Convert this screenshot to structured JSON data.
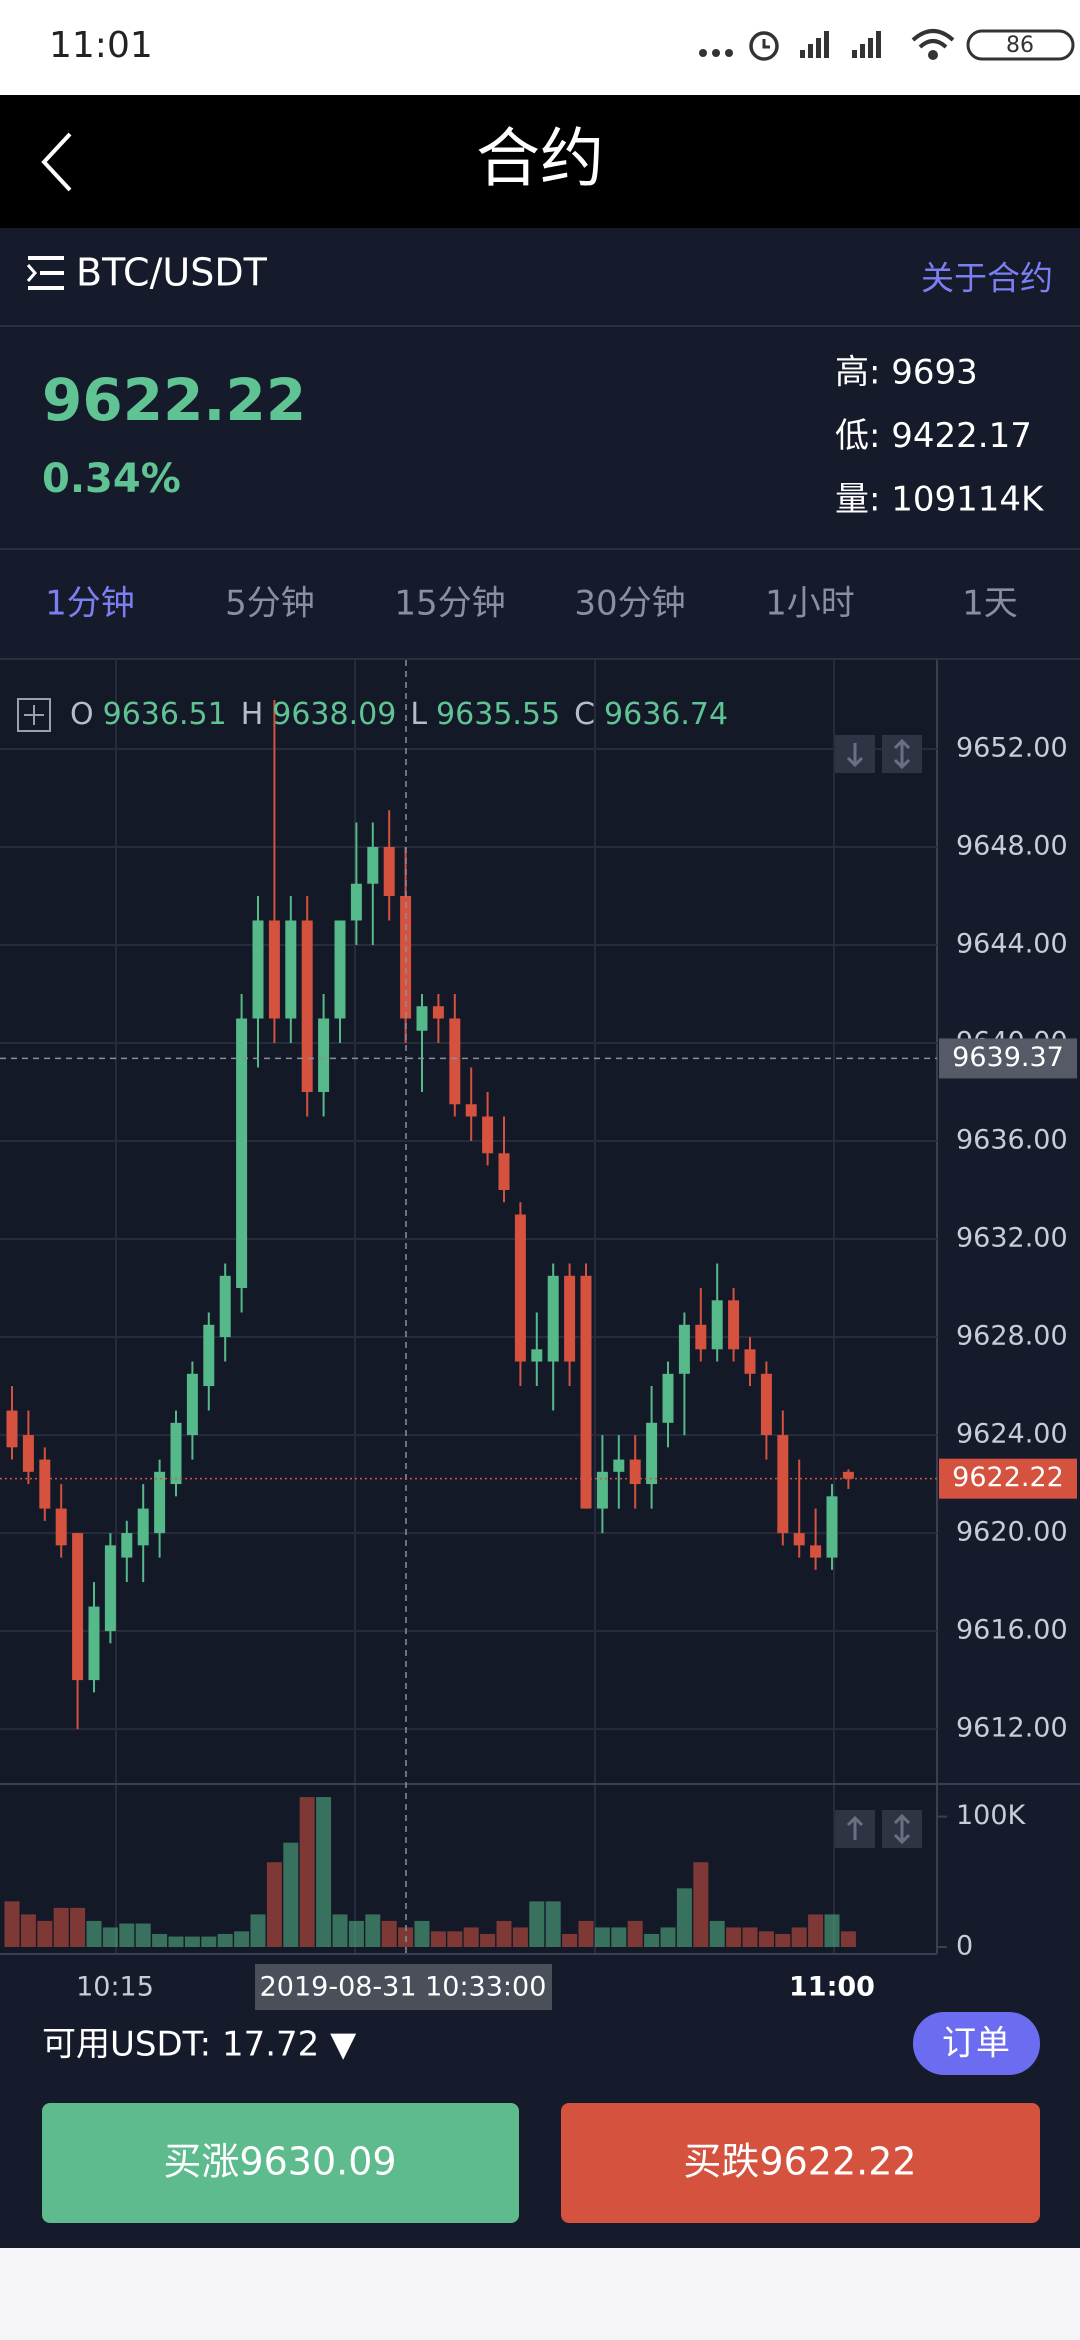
{
  "status_bar": {
    "time": "11:01",
    "battery": "86"
  },
  "header": {
    "title": "合约"
  },
  "market": {
    "pair": "BTC/USDT",
    "about": "关于合约",
    "price": "9622.22",
    "change": "0.34%",
    "stats": [
      "高: 9693",
      "低: 9422.17",
      "量: 109114K"
    ]
  },
  "tabs": {
    "items": [
      "1分钟",
      "5分钟",
      "15分钟",
      "30分钟",
      "1小时",
      "1天"
    ],
    "active": 0
  },
  "chart_data": {
    "type": "candlestick",
    "up_color": "#55b98a",
    "down_color": "#d5523f",
    "ohlc_legend": [
      {
        "label": "O",
        "value": "9636.51"
      },
      {
        "label": "H",
        "value": "9638.09"
      },
      {
        "label": "L",
        "value": "9635.55"
      },
      {
        "label": "C",
        "value": "9636.74"
      }
    ],
    "ylim": [
      9609.76,
      9655.63
    ],
    "yticks": [
      {
        "value": 9652,
        "label": "9652.00"
      },
      {
        "value": 9648,
        "label": "9648.00"
      },
      {
        "value": 9644,
        "label": "9644.00"
      },
      {
        "value": 9640,
        "label": "9640.00"
      },
      {
        "value": 9636,
        "label": "9636.00"
      },
      {
        "value": 9632,
        "label": "9632.00"
      },
      {
        "value": 9628,
        "label": "9628.00"
      },
      {
        "value": 9624,
        "label": "9624.00"
      },
      {
        "value": 9620,
        "label": "9620.00"
      },
      {
        "value": 9616,
        "label": "9616.00"
      },
      {
        "value": 9612,
        "label": "9612.00"
      }
    ],
    "grid": true,
    "crosshair": {
      "value": 9639.37,
      "label": "9639.37",
      "time": "2019-08-31 10:33:00"
    },
    "last_price": {
      "value": 9622.22,
      "label": "9622.22"
    },
    "xlabels": [
      "10:15",
      "11:00"
    ],
    "candles": [
      {
        "open": 9625,
        "high": 9626,
        "low": 9623,
        "close": 9623.5
      },
      {
        "open": 9624,
        "high": 9625,
        "low": 9622,
        "close": 9622.5
      },
      {
        "open": 9623,
        "high": 9623.5,
        "low": 9620.5,
        "close": 9621
      },
      {
        "open": 9621,
        "high": 9622,
        "low": 9619,
        "close": 9619.5
      },
      {
        "open": 9620,
        "high": 9620,
        "low": 9612,
        "close": 9614
      },
      {
        "open": 9614,
        "high": 9618,
        "low": 9613.5,
        "close": 9617
      },
      {
        "open": 9616,
        "high": 9620,
        "low": 9615.5,
        "close": 9619.5
      },
      {
        "open": 9619,
        "high": 9620.5,
        "low": 9618,
        "close": 9620
      },
      {
        "open": 9619.5,
        "high": 9622,
        "low": 9618,
        "close": 9621
      },
      {
        "open": 9620,
        "high": 9623,
        "low": 9619,
        "close": 9622.5
      },
      {
        "open": 9622,
        "high": 9625,
        "low": 9621.5,
        "close": 9624.5
      },
      {
        "open": 9624,
        "high": 9627,
        "low": 9623,
        "close": 9626.5
      },
      {
        "open": 9626,
        "high": 9629,
        "low": 9625,
        "close": 9628.5
      },
      {
        "open": 9628,
        "high": 9631,
        "low": 9627,
        "close": 9630.5
      },
      {
        "open": 9630,
        "high": 9642,
        "low": 9629,
        "close": 9641
      },
      {
        "open": 9641,
        "high": 9646,
        "low": 9639,
        "close": 9645
      },
      {
        "open": 9645,
        "high": 9654,
        "low": 9640,
        "close": 9641
      },
      {
        "open": 9641,
        "high": 9646,
        "low": 9640,
        "close": 9645
      },
      {
        "open": 9645,
        "high": 9646,
        "low": 9637,
        "close": 9638
      },
      {
        "open": 9638,
        "high": 9642,
        "low": 9637,
        "close": 9641
      },
      {
        "open": 9641,
        "high": 9645,
        "low": 9640,
        "close": 9645
      },
      {
        "open": 9645,
        "high": 9649,
        "low": 9644,
        "close": 9646.5
      },
      {
        "open": 9646.5,
        "high": 9649,
        "low": 9644,
        "close": 9648
      },
      {
        "open": 9648,
        "high": 9649.5,
        "low": 9645,
        "close": 9646
      },
      {
        "open": 9646,
        "high": 9648,
        "low": 9640,
        "close": 9641
      },
      {
        "open": 9640.5,
        "high": 9642,
        "low": 9638,
        "close": 9641.5
      },
      {
        "open": 9641.5,
        "high": 9642,
        "low": 9640,
        "close": 9641
      },
      {
        "open": 9641,
        "high": 9642,
        "low": 9637,
        "close": 9637.5
      },
      {
        "open": 9637.5,
        "high": 9639,
        "low": 9636,
        "close": 9637
      },
      {
        "open": 9637,
        "high": 9638,
        "low": 9635,
        "close": 9635.5
      },
      {
        "open": 9635.5,
        "high": 9637,
        "low": 9633.5,
        "close": 9634
      },
      {
        "open": 9633,
        "high": 9633.5,
        "low": 9626,
        "close": 9627
      },
      {
        "open": 9627,
        "high": 9629,
        "low": 9626,
        "close": 9627.5
      },
      {
        "open": 9627,
        "high": 9631,
        "low": 9625,
        "close": 9630.5
      },
      {
        "open": 9630.5,
        "high": 9631,
        "low": 9626,
        "close": 9627
      },
      {
        "open": 9630.5,
        "high": 9631,
        "low": 9621,
        "close": 9621
      },
      {
        "open": 9621,
        "high": 9624,
        "low": 9620,
        "close": 9622.5
      },
      {
        "open": 9622.5,
        "high": 9624,
        "low": 9621,
        "close": 9623
      },
      {
        "open": 9623,
        "high": 9624,
        "low": 9621,
        "close": 9622
      },
      {
        "open": 9622,
        "high": 9626,
        "low": 9621,
        "close": 9624.5
      },
      {
        "open": 9624.5,
        "high": 9627,
        "low": 9623.5,
        "close": 9626.5
      },
      {
        "open": 9626.5,
        "high": 9629,
        "low": 9624,
        "close": 9628.5
      },
      {
        "open": 9628.5,
        "high": 9630,
        "low": 9627,
        "close": 9627.5
      },
      {
        "open": 9627.5,
        "high": 9631,
        "low": 9627,
        "close": 9629.5
      },
      {
        "open": 9629.5,
        "high": 9630,
        "low": 9627,
        "close": 9627.5
      },
      {
        "open": 9627.5,
        "high": 9628,
        "low": 9626,
        "close": 9626.5
      },
      {
        "open": 9626.5,
        "high": 9627,
        "low": 9623,
        "close": 9624
      },
      {
        "open": 9624,
        "high": 9625,
        "low": 9619.5,
        "close": 9620
      },
      {
        "open": 9620,
        "high": 9623,
        "low": 9619,
        "close": 9619.5
      },
      {
        "open": 9619.5,
        "high": 9621,
        "low": 9618.5,
        "close": 9619
      },
      {
        "open": 9619,
        "high": 9622,
        "low": 9618.5,
        "close": 9621.5
      },
      {
        "open": 9622.5,
        "high": 9622.6,
        "low": 9621.8,
        "close": 9622.22
      }
    ],
    "volume": {
      "ylim": [
        0,
        125
      ],
      "yticks": [
        0,
        {
          "value": 100,
          "label": "100K"
        }
      ],
      "values": [
        35,
        25,
        20,
        30,
        30,
        20,
        15,
        18,
        18,
        10,
        8,
        8,
        8,
        10,
        12,
        25,
        65,
        80,
        115,
        115,
        25,
        20,
        25,
        20,
        15,
        20,
        12,
        12,
        15,
        10,
        20,
        15,
        35,
        35,
        10,
        20,
        15,
        15,
        20,
        10,
        15,
        45,
        65,
        20,
        15,
        15,
        12,
        10,
        15,
        25,
        25,
        12
      ]
    }
  },
  "footer": {
    "balance": "可用USDT: 17.72 ▼",
    "orders": "订单",
    "buy_up": "买涨9630.09",
    "buy_down": "买跌9622.22"
  }
}
